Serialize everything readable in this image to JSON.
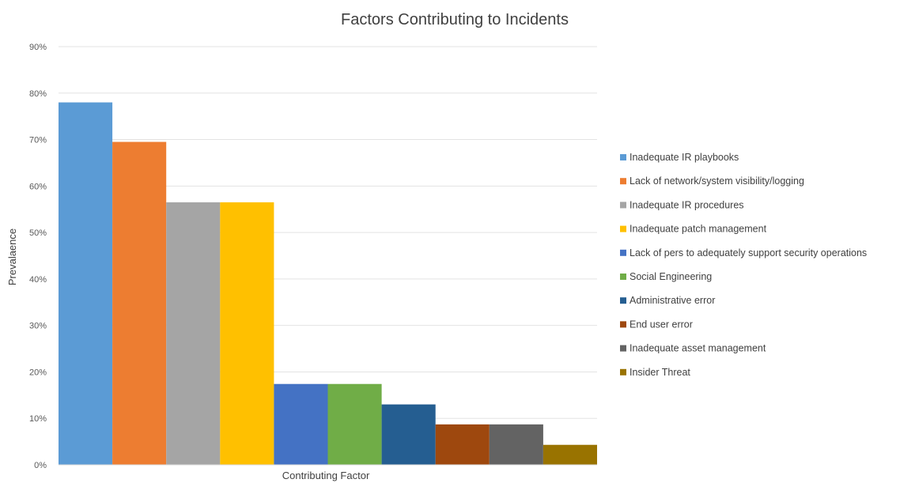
{
  "chart_data": {
    "type": "bar",
    "title": "Factors Contributing to Incidents",
    "xlabel": "Contributing Factor",
    "ylabel": "Prevalaence",
    "ylim": [
      0,
      90
    ],
    "y_ticks": [
      "0%",
      "10%",
      "20%",
      "30%",
      "40%",
      "50%",
      "60%",
      "70%",
      "80%",
      "90%"
    ],
    "grid": true,
    "legend_position": "right",
    "series": [
      {
        "name": "Inadequate IR playbooks",
        "value": 78,
        "color": "#5b9bd5"
      },
      {
        "name": "Lack of network/system visibility/logging",
        "value": 69.5,
        "color": "#ed7d31"
      },
      {
        "name": "Inadequate IR procedures",
        "value": 56.5,
        "color": "#a5a5a5"
      },
      {
        "name": "Inadequate patch management",
        "value": 56.5,
        "color": "#ffc000"
      },
      {
        "name": "Lack of pers to adequately support security operations",
        "value": 17.4,
        "color": "#4472c4"
      },
      {
        "name": "Social Engineering",
        "value": 17.4,
        "color": "#70ad47"
      },
      {
        "name": "Administrative error",
        "value": 13,
        "color": "#255e91"
      },
      {
        "name": "End user error",
        "value": 8.7,
        "color": "#9e480e"
      },
      {
        "name": "Inadequate asset management",
        "value": 8.7,
        "color": "#636363"
      },
      {
        "name": "Insider Threat",
        "value": 4.3,
        "color": "#997300"
      }
    ]
  }
}
